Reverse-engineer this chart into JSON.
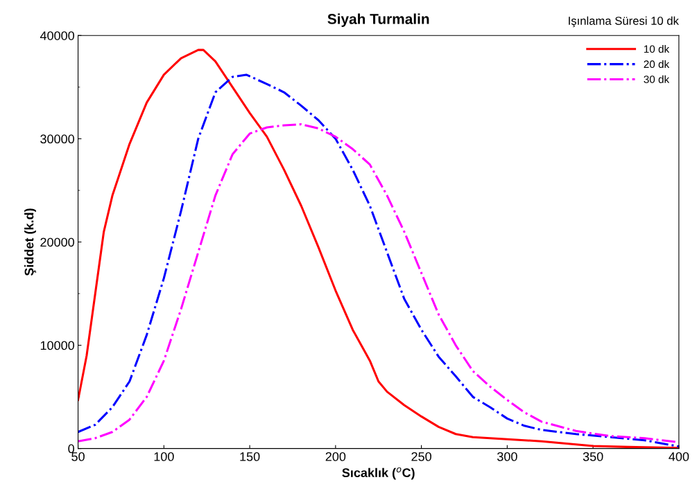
{
  "chart_data": {
    "type": "line",
    "title": "Siyah Turmalin",
    "xlabel": "Sıcaklık ($^{o}$C)",
    "ylabel": "Şiddet (k.d)",
    "annotations": [
      "Işınlama Süresi 10 dk"
    ],
    "xlim": [
      50,
      400
    ],
    "xticks": [
      50,
      100,
      150,
      200,
      250,
      300,
      350,
      400
    ],
    "ylim": [
      0,
      40000
    ],
    "yticks": [
      0,
      10000,
      20000,
      30000,
      40000
    ],
    "grid": false,
    "legend": "top right",
    "marker": "none",
    "series": [
      {
        "name": "10 dk",
        "color": "#ff0000",
        "line_style": "solid",
        "x": [
          50,
          55,
          60,
          65,
          70,
          80,
          90,
          100,
          110,
          120,
          123,
          130,
          140,
          150,
          160,
          170,
          180,
          190,
          200,
          210,
          220,
          225,
          230,
          240,
          250,
          260,
          270,
          280,
          300,
          320,
          340,
          350,
          370,
          400
        ],
        "values": [
          4700,
          9000,
          15000,
          21000,
          24500,
          29500,
          33500,
          36200,
          37800,
          38600,
          38600,
          37500,
          35000,
          32500,
          30200,
          27000,
          23500,
          19500,
          15300,
          11500,
          8500,
          6500,
          5500,
          4200,
          3100,
          2100,
          1400,
          1100,
          900,
          700,
          400,
          250,
          150,
          50
        ]
      },
      {
        "name": "20 dk",
        "color": "#0000ff",
        "line_style": "dashdot",
        "x": [
          50,
          60,
          70,
          80,
          90,
          100,
          110,
          120,
          130,
          140,
          148,
          160,
          170,
          180,
          190,
          200,
          210,
          220,
          230,
          240,
          250,
          260,
          270,
          280,
          290,
          300,
          310,
          320,
          340,
          360,
          380,
          400
        ],
        "values": [
          1600,
          2300,
          4000,
          6500,
          11000,
          16500,
          23000,
          30000,
          34500,
          36000,
          36200,
          35300,
          34500,
          33200,
          31800,
          30000,
          27000,
          23500,
          19000,
          14500,
          11500,
          8900,
          7000,
          5000,
          4000,
          2900,
          2200,
          1800,
          1400,
          1100,
          800,
          200
        ]
      },
      {
        "name": "30 dk",
        "color": "#ff00ff",
        "line_style": "dashdot",
        "x": [
          50,
          60,
          70,
          80,
          90,
          100,
          110,
          120,
          130,
          140,
          150,
          160,
          170,
          180,
          190,
          200,
          210,
          220,
          230,
          240,
          250,
          260,
          270,
          280,
          290,
          300,
          310,
          320,
          340,
          360,
          380,
          400
        ],
        "values": [
          700,
          1000,
          1600,
          2800,
          5000,
          8500,
          13500,
          19000,
          24500,
          28500,
          30500,
          31100,
          31300,
          31400,
          31000,
          30200,
          29000,
          27500,
          24500,
          21000,
          17000,
          13000,
          10000,
          7500,
          6000,
          4700,
          3500,
          2600,
          1700,
          1200,
          1000,
          600
        ]
      }
    ]
  }
}
